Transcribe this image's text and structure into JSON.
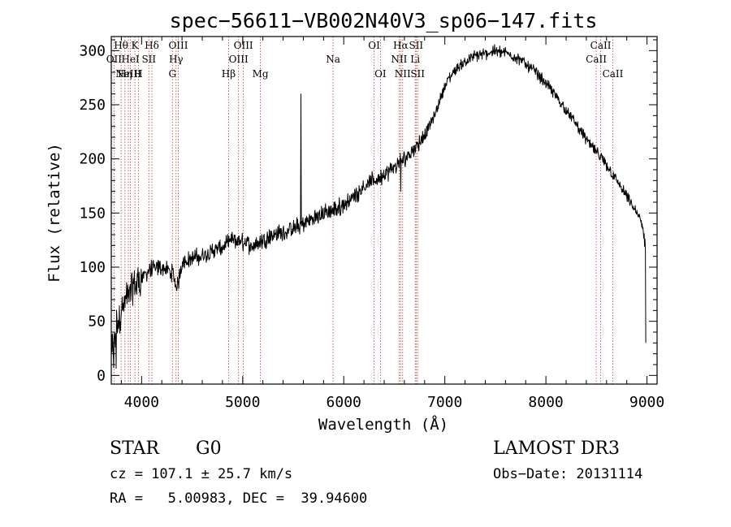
{
  "chart_data": {
    "type": "line",
    "title": "spec−56611−VB002N40V3_sp06−147.fits",
    "xlabel": "Wavelength (Å)",
    "ylabel": "Flux (relative)",
    "xlim": [
      3700,
      9100
    ],
    "ylim": [
      -8,
      313
    ],
    "xticks": [
      4000,
      5000,
      6000,
      7000,
      8000,
      9000
    ],
    "yticks": [
      0,
      50,
      100,
      150,
      200,
      250,
      300
    ],
    "spectrum_anchors": {
      "x": [
        3700,
        3750,
        3800,
        3850,
        3900,
        3950,
        4000,
        4050,
        4100,
        4200,
        4300,
        4350,
        4400,
        4500,
        4600,
        4700,
        4800,
        4900,
        5000,
        5100,
        5200,
        5300,
        5400,
        5500,
        5600,
        5700,
        5800,
        5900,
        6000,
        6100,
        6200,
        6300,
        6400,
        6500,
        6600,
        6700,
        6800,
        6900,
        7000,
        7100,
        7200,
        7300,
        7400,
        7500,
        7600,
        7700,
        7800,
        7900,
        8000,
        8100,
        8200,
        8300,
        8400,
        8500,
        8600,
        8700,
        8800,
        8900,
        8950,
        8990
      ],
      "y": [
        20,
        45,
        60,
        70,
        80,
        85,
        90,
        95,
        98,
        100,
        95,
        80,
        105,
        108,
        110,
        115,
        118,
        125,
        123,
        120,
        125,
        130,
        132,
        135,
        140,
        145,
        150,
        152,
        158,
        165,
        175,
        180,
        185,
        192,
        200,
        210,
        222,
        240,
        268,
        282,
        290,
        295,
        297,
        300,
        298,
        294,
        288,
        280,
        270,
        258,
        245,
        232,
        218,
        206,
        194,
        180,
        165,
        150,
        140,
        115
      ]
    },
    "features": [
      {
        "x": 5577,
        "y": 260,
        "label": "sky emission spike"
      },
      {
        "x": 6563,
        "y": 170,
        "label": "H-alpha absorption"
      },
      {
        "x": 8990,
        "y": 30,
        "label": "red-end drop"
      }
    ],
    "line_markers": [
      {
        "x": 3727,
        "label": "OII",
        "row": 1
      },
      {
        "x": 3797,
        "label": "Hθ",
        "row": 0
      },
      {
        "x": 3835,
        "label": "Hη",
        "row": 2
      },
      {
        "x": 3869,
        "label": "NeIII",
        "row": 2
      },
      {
        "x": 3889,
        "label": "HeI",
        "row": 1
      },
      {
        "x": 3934,
        "label": "K",
        "row": 0
      },
      {
        "x": 3968,
        "label": "H",
        "row": 2
      },
      {
        "x": 4072,
        "label": "SII",
        "row": 1
      },
      {
        "x": 4102,
        "label": "Hδ",
        "row": 0
      },
      {
        "x": 4305,
        "label": "G",
        "row": 2
      },
      {
        "x": 4341,
        "label": "Hγ",
        "row": 1
      },
      {
        "x": 4363,
        "label": "OIII",
        "row": 0
      },
      {
        "x": 4861,
        "label": "Hβ",
        "row": 2
      },
      {
        "x": 4959,
        "label": "OIII",
        "row": 1
      },
      {
        "x": 5007,
        "label": "OIII",
        "row": 0
      },
      {
        "x": 5175,
        "label": "Mg",
        "row": 2
      },
      {
        "x": 5894,
        "label": "Na",
        "row": 1
      },
      {
        "x": 6300,
        "label": "OI",
        "row": 0
      },
      {
        "x": 6363,
        "label": "OI",
        "row": 2
      },
      {
        "x": 6548,
        "label": "NII",
        "row": 1
      },
      {
        "x": 6563,
        "label": "Hα",
        "row": 0
      },
      {
        "x": 6583,
        "label": "NII",
        "row": 2
      },
      {
        "x": 6707,
        "label": "Li",
        "row": 1
      },
      {
        "x": 6716,
        "label": "SII",
        "row": 0
      },
      {
        "x": 6731,
        "label": "SII",
        "row": 2
      },
      {
        "x": 8498,
        "label": "CaII",
        "row": 1
      },
      {
        "x": 8542,
        "label": "CaII",
        "row": 0
      },
      {
        "x": 8662,
        "label": "CaII",
        "row": 2
      }
    ]
  },
  "info": {
    "class": "STAR",
    "subclass": "G0",
    "survey": "LAMOST DR3",
    "cz": "cz = 107.1 ± 25.7 km/s",
    "obs_date": "Obs−Date: 20131114",
    "coords": "RA =   5.00983, DEC =  39.94600"
  }
}
